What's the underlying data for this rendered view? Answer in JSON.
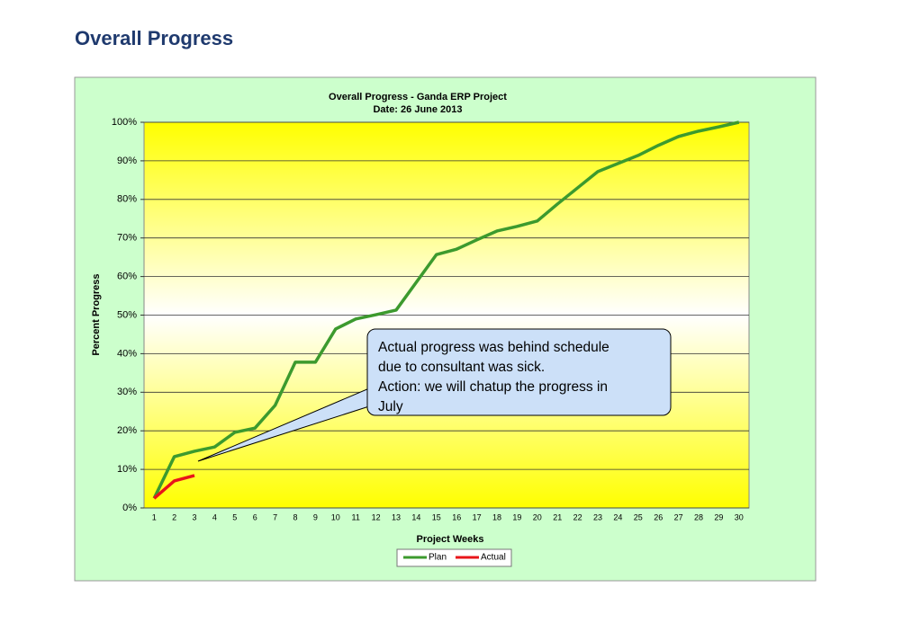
{
  "heading": "Overall Progress",
  "chart_data": {
    "type": "line",
    "title": [
      "Overall Progress - Ganda ERP Project",
      "Date: 26 June 2013"
    ],
    "xlabel": "Project Weeks",
    "ylabel": "Percent Progress",
    "categories": [
      "1",
      "2",
      "3",
      "4",
      "5",
      "6",
      "7",
      "8",
      "9",
      "10",
      "11",
      "12",
      "13",
      "14",
      "15",
      "16",
      "17",
      "18",
      "19",
      "20",
      "21",
      "22",
      "23",
      "24",
      "25",
      "26",
      "27",
      "28",
      "29",
      "30"
    ],
    "series": [
      {
        "name": "Plan",
        "color": "#3c9a2e",
        "values": [
          2.5,
          13.3,
          14.7,
          15.8,
          19.6,
          20.7,
          26.6,
          37.8,
          37.8,
          46.4,
          49.0,
          50.1,
          51.3,
          58.5,
          65.7,
          67.1,
          69.5,
          71.8,
          73.0,
          74.4,
          78.8,
          83.0,
          87.2,
          89.3,
          91.4,
          94.0,
          96.3,
          97.7,
          98.8,
          100
        ]
      },
      {
        "name": "Actual",
        "color": "#e8141a",
        "values": [
          2.5,
          7.0,
          8.4,
          null,
          null,
          null,
          null,
          null,
          null,
          null,
          null,
          null,
          null,
          null,
          null,
          null,
          null,
          null,
          null,
          null,
          null,
          null,
          null,
          null,
          null,
          null,
          null,
          null,
          null,
          null
        ]
      }
    ],
    "ylim": [
      0,
      100
    ],
    "yticks": [
      {
        "value": 0,
        "label": "0%"
      },
      {
        "value": 10,
        "label": "10%"
      },
      {
        "value": 20,
        "label": "20%"
      },
      {
        "value": 30,
        "label": "30%"
      },
      {
        "value": 40,
        "label": "40%"
      },
      {
        "value": 50,
        "label": "50%"
      },
      {
        "value": 60,
        "label": "60%"
      },
      {
        "value": 70,
        "label": "70%"
      },
      {
        "value": 80,
        "label": "80%"
      },
      {
        "value": 90,
        "label": "90%"
      },
      {
        "value": 100,
        "label": "100%"
      }
    ],
    "grid": true,
    "legend": "bottom",
    "annotation": [
      "Actual progress was behind schedule",
      "due to consultant was sick.",
      "Action: we will chatup the progress in",
      "July"
    ]
  }
}
